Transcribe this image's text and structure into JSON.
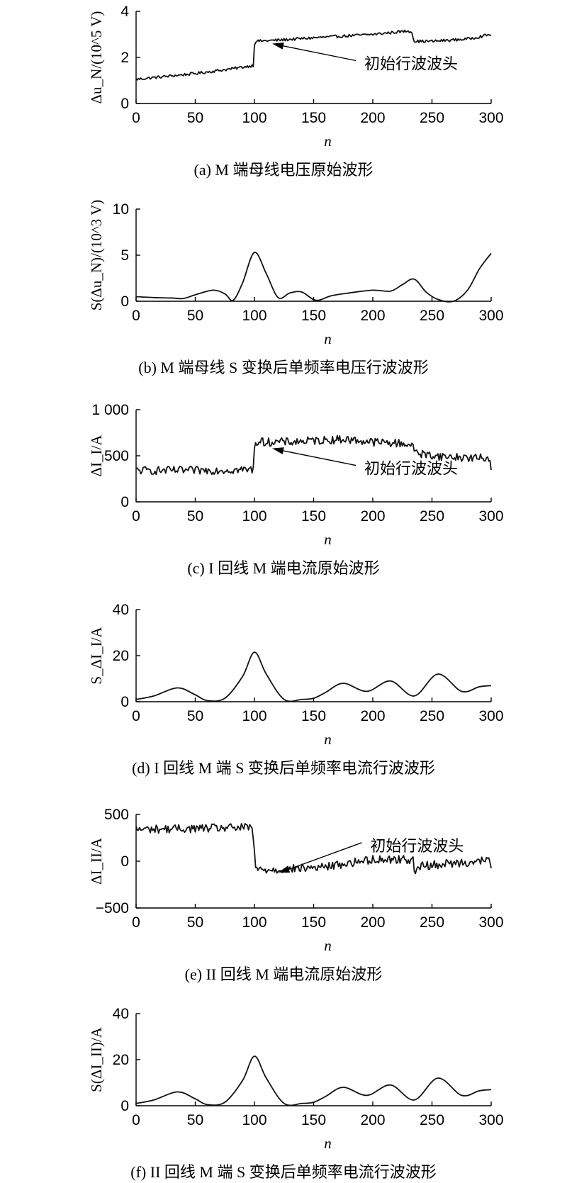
{
  "chart_data": [
    {
      "id": "a",
      "type": "line",
      "caption": "(a) M 端母线电压原始波形",
      "xlabel": "n",
      "ylabel": "Δu_N/(10^5 V)",
      "xlim": [
        0,
        300
      ],
      "ylim": [
        0,
        4
      ],
      "xticks": [
        0,
        50,
        100,
        150,
        200,
        250,
        300
      ],
      "yticks": [
        0,
        2,
        4
      ],
      "ytick_labels": [
        "0",
        "2",
        "4"
      ],
      "noise": 0.06,
      "series": [
        {
          "x": [
            0,
            20,
            50,
            80,
            99,
            100,
            101,
            120,
            150,
            200,
            230,
            233,
            235,
            250,
            280,
            300
          ],
          "y": [
            1.05,
            1.15,
            1.3,
            1.5,
            1.65,
            2.55,
            2.7,
            2.75,
            2.85,
            3.0,
            3.15,
            3.1,
            2.7,
            2.7,
            2.8,
            3.0
          ]
        }
      ],
      "annotation": {
        "text": "初始行波波头",
        "x": 115,
        "y": 2.6
      }
    },
    {
      "id": "b",
      "type": "line",
      "caption": "(b) M 端母线 S 变换后单频率电压行波波形",
      "xlabel": "n",
      "ylabel": "S(Δu_N)/(10^3 V)",
      "xlim": [
        0,
        300
      ],
      "ylim": [
        0,
        10
      ],
      "xticks": [
        0,
        50,
        100,
        150,
        200,
        250,
        300
      ],
      "yticks": [
        0,
        5,
        10
      ],
      "ytick_labels": [
        "0",
        "5",
        "10"
      ],
      "noise": 0,
      "series": [
        {
          "x": [
            0,
            15,
            30,
            40,
            50,
            65,
            75,
            82,
            90,
            100,
            110,
            120,
            130,
            140,
            152,
            165,
            180,
            200,
            215,
            225,
            235,
            245,
            255,
            268,
            280,
            290,
            300
          ],
          "y": [
            0.5,
            0.4,
            0.35,
            0.3,
            0.7,
            1.2,
            0.8,
            0.1,
            2.0,
            5.3,
            3.0,
            0.4,
            0.9,
            1.0,
            0.1,
            0.6,
            0.9,
            1.2,
            1.1,
            1.8,
            2.4,
            1.0,
            0.2,
            0.0,
            1.2,
            3.5,
            5.2
          ]
        }
      ]
    },
    {
      "id": "c",
      "type": "line",
      "caption": "(c) I 回线 M 端电流原始波形",
      "xlabel": "n",
      "ylabel": "ΔI_I/A",
      "xlim": [
        0,
        300
      ],
      "ylim": [
        0,
        1000
      ],
      "xticks": [
        0,
        50,
        100,
        150,
        200,
        250,
        300
      ],
      "yticks": [
        0,
        500,
        1000
      ],
      "ytick_labels": [
        "0",
        "500",
        "1 000"
      ],
      "noise": 45,
      "series": [
        {
          "x": [
            0,
            50,
            99,
            100,
            101,
            130,
            175,
            200,
            230,
            240,
            260,
            299,
            300
          ],
          "y": [
            340,
            340,
            350,
            600,
            650,
            650,
            680,
            650,
            630,
            520,
            490,
            470,
            390
          ]
        }
      ],
      "annotation": {
        "text": "初始行波波头",
        "x": 115,
        "y": 580
      }
    },
    {
      "id": "d",
      "type": "line",
      "caption": "(d) I 回线 M 端 S 变换后单频率电流行波波形",
      "xlabel": "n",
      "ylabel": "S_ΔI_I/A",
      "xlim": [
        0,
        300
      ],
      "ylim": [
        0,
        40
      ],
      "xticks": [
        0,
        50,
        100,
        150,
        200,
        250,
        300
      ],
      "yticks": [
        0,
        20,
        40
      ],
      "ytick_labels": [
        "0",
        "20",
        "40"
      ],
      "noise": 0,
      "series": [
        {
          "x": [
            0,
            15,
            35,
            50,
            60,
            75,
            90,
            100,
            110,
            125,
            140,
            150,
            160,
            175,
            195,
            215,
            235,
            255,
            275,
            290,
            300
          ],
          "y": [
            1.0,
            2.5,
            6.0,
            3.0,
            0.5,
            1.5,
            11.0,
            21.5,
            12.0,
            1.0,
            1.0,
            1.5,
            4.0,
            8.0,
            4.5,
            9.0,
            2.5,
            12.0,
            4.5,
            6.5,
            7.0
          ]
        }
      ]
    },
    {
      "id": "e",
      "type": "line",
      "caption": "(e) II 回线 M 端电流原始波形",
      "xlabel": "n",
      "ylabel": "ΔI_II/A",
      "xlim": [
        0,
        300
      ],
      "ylim": [
        -500,
        500
      ],
      "xticks": [
        0,
        50,
        100,
        150,
        200,
        250,
        300
      ],
      "yticks": [
        -500,
        0,
        500
      ],
      "ytick_labels": [
        "−500",
        "0",
        "500"
      ],
      "noise": 45,
      "series": [
        {
          "x": [
            0,
            50,
            98,
            100,
            101,
            120,
            160,
            200,
            234,
            236,
            240,
            270,
            299,
            300
          ],
          "y": [
            340,
            350,
            360,
            120,
            -90,
            -90,
            -60,
            20,
            20,
            -150,
            -50,
            -20,
            10,
            -100
          ]
        }
      ],
      "annotation": {
        "text": "初始行波波头",
        "x": 120,
        "y": -120
      }
    },
    {
      "id": "f",
      "type": "line",
      "caption": "(f) II 回线 M 端 S 变换后单频率电流行波波形",
      "xlabel": "n",
      "ylabel": "S(ΔI_II)/A",
      "xlim": [
        0,
        300
      ],
      "ylim": [
        0,
        40
      ],
      "xticks": [
        0,
        50,
        100,
        150,
        200,
        250,
        300
      ],
      "yticks": [
        0,
        20,
        40
      ],
      "ytick_labels": [
        "0",
        "20",
        "40"
      ],
      "noise": 0,
      "series": [
        {
          "x": [
            0,
            15,
            35,
            50,
            60,
            75,
            90,
            100,
            110,
            125,
            140,
            150,
            160,
            175,
            195,
            215,
            235,
            255,
            275,
            290,
            300
          ],
          "y": [
            1.0,
            2.5,
            6.0,
            3.0,
            0.5,
            1.5,
            11.0,
            21.5,
            12.0,
            1.0,
            1.0,
            1.5,
            4.0,
            8.0,
            4.5,
            9.0,
            2.5,
            12.0,
            4.5,
            6.5,
            7.0
          ]
        }
      ]
    }
  ]
}
